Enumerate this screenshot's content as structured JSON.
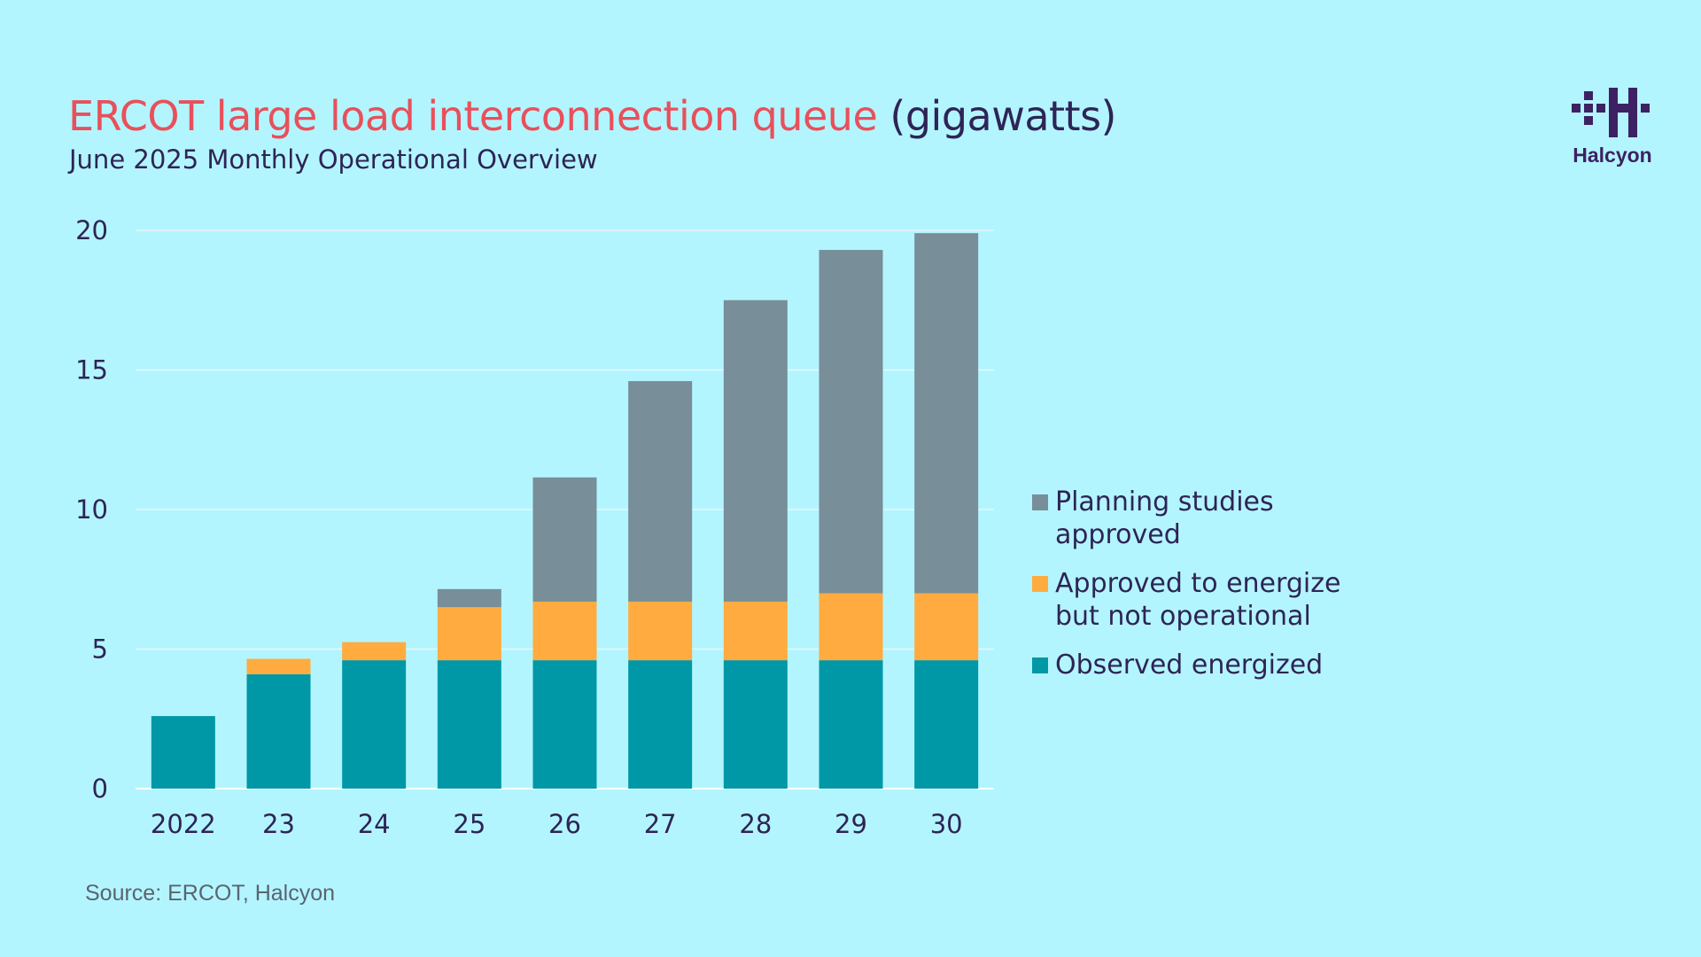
{
  "title": {
    "main": "ERCOT large load interconnection queue",
    "unit": "(gigawatts)"
  },
  "subtitle": "June 2025 Monthly Operational Overview",
  "logo": {
    "text": "Halcyon",
    "color": "#3d2163"
  },
  "source": "Source: ERCOT, Halcyon",
  "colors": {
    "background": "#b3f5ff",
    "observed": "#0098a6",
    "approved": "#ffab40",
    "planning": "#788e99",
    "title_accent": "#e8505b",
    "text": "#2e2456"
  },
  "chart_data": {
    "type": "bar",
    "stacked": true,
    "categories": [
      "2022",
      "23",
      "24",
      "25",
      "26",
      "27",
      "28",
      "29",
      "30"
    ],
    "series": [
      {
        "name": "Observed energized",
        "color": "#0098a6",
        "values": [
          2.6,
          4.1,
          4.6,
          4.6,
          4.6,
          4.6,
          4.6,
          4.6,
          4.6
        ]
      },
      {
        "name": "Approved to energize but not operational",
        "color": "#ffab40",
        "values": [
          0,
          0.55,
          0.65,
          1.9,
          2.1,
          2.1,
          2.1,
          2.4,
          2.4
        ]
      },
      {
        "name": "Planning studies approved",
        "color": "#788e99",
        "values": [
          0,
          0,
          0,
          0.65,
          4.45,
          7.9,
          10.8,
          12.3,
          12.9
        ]
      }
    ],
    "ylim": [
      0,
      20
    ],
    "yticks": [
      0,
      5,
      10,
      15,
      20
    ],
    "grid": true,
    "legend_placement": "right"
  },
  "legend": {
    "items": [
      {
        "line1": "Planning studies",
        "line2": "approved",
        "color": "#788e99"
      },
      {
        "line1": "Approved to energize",
        "line2": "but not operational",
        "color": "#ffab40"
      },
      {
        "line1": "Observed energized",
        "line2": "",
        "color": "#0098a6"
      }
    ]
  }
}
